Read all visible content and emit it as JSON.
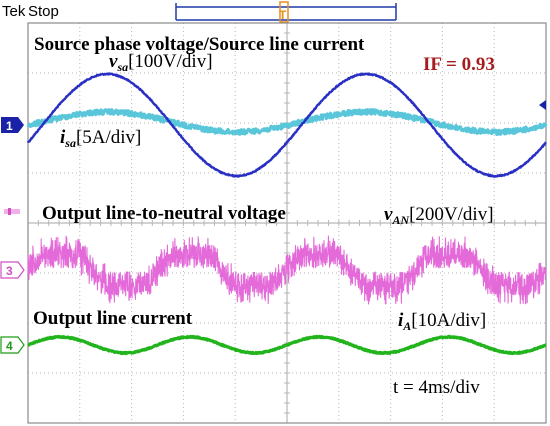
{
  "header": {
    "brand": "Tek",
    "status": "Stop"
  },
  "colors": {
    "grid": "#b7b7b7",
    "ch1": "#2a2fc4",
    "ch1_marker": "#1a23a8",
    "ch_cur": "#59c6d9",
    "ch3": "#e36ad8",
    "ch4": "#22b41c",
    "pf_text": "#a51c1c",
    "trigger": "#e8901e"
  },
  "channels": {
    "ch1": {
      "marker": "1"
    },
    "ch3": {
      "marker": "3"
    },
    "ch4": {
      "marker": "4"
    }
  },
  "labels": {
    "source_title": "Source phase voltage/Source line current",
    "vsa_main": "v",
    "vsa_sub": "sa",
    "vsa_scale": "[100V/div]",
    "isa_main": "i",
    "isa_sub": "sa",
    "isa_scale": "[5A/div]",
    "pf": "IF = 0.93",
    "output_voltage_title": "Output line-to-neutral voltage",
    "van_main": "v",
    "van_sub": "AN",
    "van_scale": "[200V/div]",
    "output_current_title": "Output line current",
    "ia_main": "i",
    "ia_sub": "A",
    "ia_scale": "[10A/div]",
    "timebase": "t = 4ms/div"
  }
}
